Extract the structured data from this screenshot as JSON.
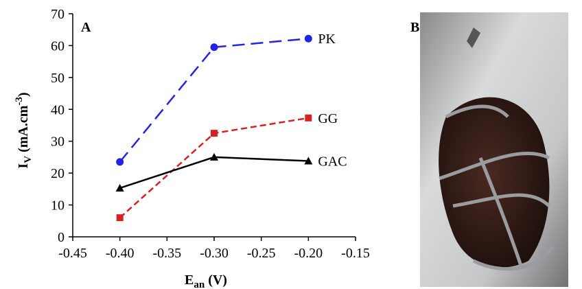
{
  "chart_data": {
    "type": "line",
    "panel_label": "A",
    "xlabel": {
      "main": "E",
      "sub": "an",
      "rest": " (V)"
    },
    "ylabel": {
      "main": "I",
      "sub": "V",
      "unit": " (mA.cm",
      "sup": "-3",
      "close": ")"
    },
    "x": [
      -0.4,
      -0.3,
      -0.2
    ],
    "series": [
      {
        "name": "PK",
        "color": "#2323e8",
        "marker": "circle",
        "dash": "18,9",
        "values": [
          23.5,
          59.5,
          62.2
        ]
      },
      {
        "name": "GG",
        "color": "#d42222",
        "marker": "square",
        "dash": "9,5",
        "values": [
          6,
          32.5,
          37.3
        ]
      },
      {
        "name": "GAC",
        "color": "#000000",
        "marker": "triangle",
        "dash": "none",
        "values": [
          15.3,
          25,
          23.8
        ]
      }
    ],
    "xlim": [
      -0.45,
      -0.15
    ],
    "xticks": [
      -0.45,
      {
        "value": -0.4,
        "label": "-0.40"
      },
      -0.35,
      {
        "value": -0.3,
        "label": "-0.30"
      },
      -0.25,
      {
        "value": -0.2,
        "label": "-0.20"
      },
      -0.15
    ],
    "ylim": [
      0,
      70
    ],
    "yticks": [
      0,
      10,
      20,
      30,
      40,
      50,
      60,
      70
    ]
  },
  "photo": {
    "panel_label": "B"
  }
}
